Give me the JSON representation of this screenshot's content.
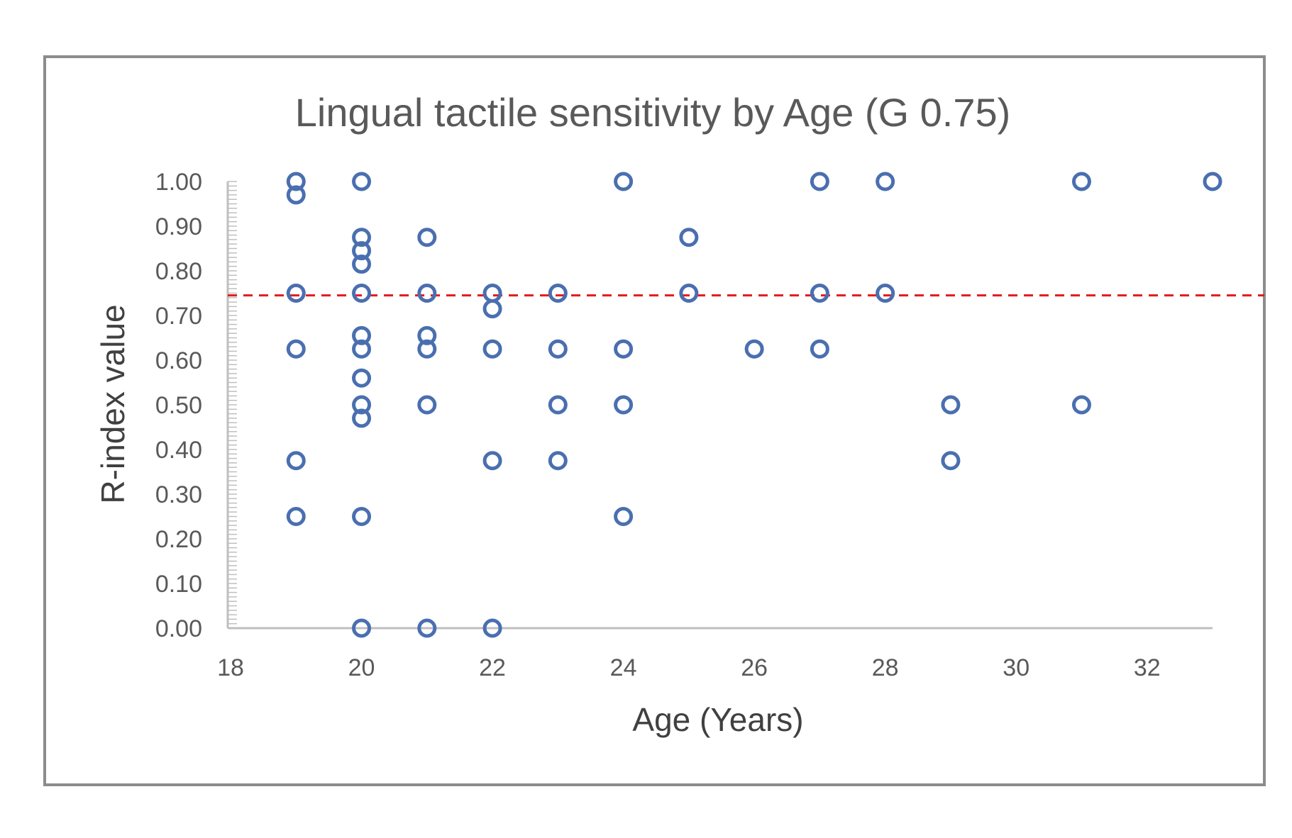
{
  "chart_data": {
    "type": "scatter",
    "title": "Lingual tactile sensitivity by Age (G 0.75)",
    "xlabel": "Age (Years)",
    "ylabel": "R-index value",
    "xlim": [
      18,
      33
    ],
    "ylim": [
      0,
      1
    ],
    "x_ticks": [
      "18",
      "20",
      "22",
      "24",
      "26",
      "28",
      "30",
      "32"
    ],
    "y_ticks": [
      "0.00",
      "0.10",
      "0.20",
      "0.30",
      "0.40",
      "0.50",
      "0.60",
      "0.70",
      "0.80",
      "0.90",
      "1.00"
    ],
    "grid": false,
    "legend": "none",
    "threshold": {
      "y": 0.745,
      "style": "dashed"
    },
    "series": [
      {
        "name": "R-index",
        "points": [
          {
            "x": 19,
            "y": 1.0
          },
          {
            "x": 19,
            "y": 0.97
          },
          {
            "x": 19,
            "y": 0.75
          },
          {
            "x": 19,
            "y": 0.625
          },
          {
            "x": 19,
            "y": 0.375
          },
          {
            "x": 19,
            "y": 0.25
          },
          {
            "x": 20,
            "y": 1.0
          },
          {
            "x": 20,
            "y": 0.875
          },
          {
            "x": 20,
            "y": 0.845
          },
          {
            "x": 20,
            "y": 0.815
          },
          {
            "x": 20,
            "y": 0.75
          },
          {
            "x": 20,
            "y": 0.655
          },
          {
            "x": 20,
            "y": 0.625
          },
          {
            "x": 20,
            "y": 0.56
          },
          {
            "x": 20,
            "y": 0.5
          },
          {
            "x": 20,
            "y": 0.47
          },
          {
            "x": 20,
            "y": 0.25
          },
          {
            "x": 20,
            "y": 0.0
          },
          {
            "x": 21,
            "y": 0.875
          },
          {
            "x": 21,
            "y": 0.75
          },
          {
            "x": 21,
            "y": 0.655
          },
          {
            "x": 21,
            "y": 0.625
          },
          {
            "x": 21,
            "y": 0.5
          },
          {
            "x": 21,
            "y": 0.0
          },
          {
            "x": 22,
            "y": 0.75
          },
          {
            "x": 22,
            "y": 0.715
          },
          {
            "x": 22,
            "y": 0.625
          },
          {
            "x": 22,
            "y": 0.375
          },
          {
            "x": 22,
            "y": 0.0
          },
          {
            "x": 23,
            "y": 0.75
          },
          {
            "x": 23,
            "y": 0.625
          },
          {
            "x": 23,
            "y": 0.5
          },
          {
            "x": 23,
            "y": 0.375
          },
          {
            "x": 24,
            "y": 1.0
          },
          {
            "x": 24,
            "y": 0.625
          },
          {
            "x": 24,
            "y": 0.5
          },
          {
            "x": 24,
            "y": 0.25
          },
          {
            "x": 25,
            "y": 0.875
          },
          {
            "x": 25,
            "y": 0.75
          },
          {
            "x": 26,
            "y": 0.625
          },
          {
            "x": 27,
            "y": 1.0
          },
          {
            "x": 27,
            "y": 0.75
          },
          {
            "x": 27,
            "y": 0.625
          },
          {
            "x": 28,
            "y": 1.0
          },
          {
            "x": 28,
            "y": 0.75
          },
          {
            "x": 29,
            "y": 0.5
          },
          {
            "x": 29,
            "y": 0.375
          },
          {
            "x": 31,
            "y": 1.0
          },
          {
            "x": 31,
            "y": 0.5
          },
          {
            "x": 33,
            "y": 1.0
          }
        ]
      }
    ]
  },
  "colors": {
    "marker": "#4a6fb0",
    "threshold": "#e31a1c"
  }
}
